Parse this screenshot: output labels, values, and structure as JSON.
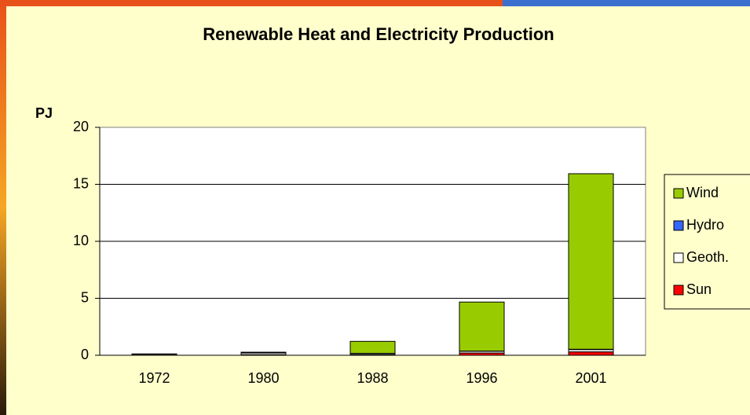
{
  "chart_data": {
    "type": "stacked_bar",
    "title": "Renewable Heat and Electricity Production",
    "y_label": "PJ",
    "categories": [
      "1972",
      "1980",
      "1988",
      "1996",
      "2001"
    ],
    "series": [
      {
        "name": "Sun",
        "color": "#ff0000",
        "values": [
          0.02,
          0.05,
          0.05,
          0.2,
          0.3
        ]
      },
      {
        "name": "Geoth.",
        "color": "#ffffff",
        "values": [
          0.08,
          0.15,
          0.1,
          0.15,
          0.2
        ]
      },
      {
        "name": "Hydro",
        "color": "#3366ff",
        "values": [
          0.02,
          0.02,
          0.02,
          0.02,
          0.03
        ]
      },
      {
        "name": "Wind",
        "color": "#99cc00",
        "values": [
          0.0,
          0.05,
          1.05,
          4.3,
          15.4
        ]
      }
    ],
    "ylim": [
      0,
      20
    ],
    "yticks": [
      0,
      5,
      10,
      15,
      20
    ],
    "grid": true,
    "legend": "right"
  }
}
